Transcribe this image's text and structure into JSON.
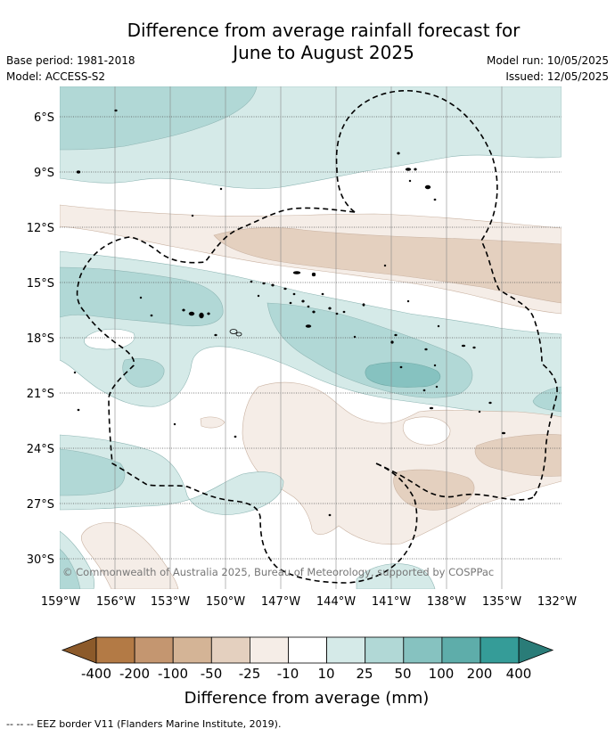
{
  "title": {
    "line1": "Difference from average rainfall forecast for",
    "line2": "June to August 2025"
  },
  "meta": {
    "base_period": "Base period: 1981-2018",
    "model": "Model: ACCESS-S2",
    "model_run": "Model run: 10/05/2025",
    "issued": "Issued: 12/05/2025"
  },
  "map": {
    "lat_labels": [
      "6°S",
      "9°S",
      "12°S",
      "15°S",
      "18°S",
      "21°S",
      "24°S",
      "27°S",
      "30°S"
    ],
    "lon_labels": [
      "159°W",
      "156°W",
      "153°W",
      "150°W",
      "147°W",
      "144°W",
      "141°W",
      "138°W",
      "135°W",
      "132°W"
    ],
    "copyright": "© Commonwealth of Australia 2025, Bureau of Meteorology, supported by COSPPac"
  },
  "colorbar": {
    "labels": [
      "-400",
      "-200",
      "-100",
      "-50",
      "-25",
      "-10",
      "10",
      "25",
      "50",
      "100",
      "200",
      "400"
    ],
    "colors": [
      "#8c5a2a",
      "#b37a45",
      "#c49670",
      "#d4b496",
      "#e4d0bf",
      "#f5ede7",
      "#ffffff",
      "#d5eae8",
      "#b1d8d6",
      "#86c2c0",
      "#5eadaa",
      "#359c98",
      "#2a7c78"
    ],
    "title": "Difference from average (mm)"
  },
  "legend": {
    "eez": "-- -- -- EEZ border V11 (Flanders Marine Institute, 2019)."
  }
}
